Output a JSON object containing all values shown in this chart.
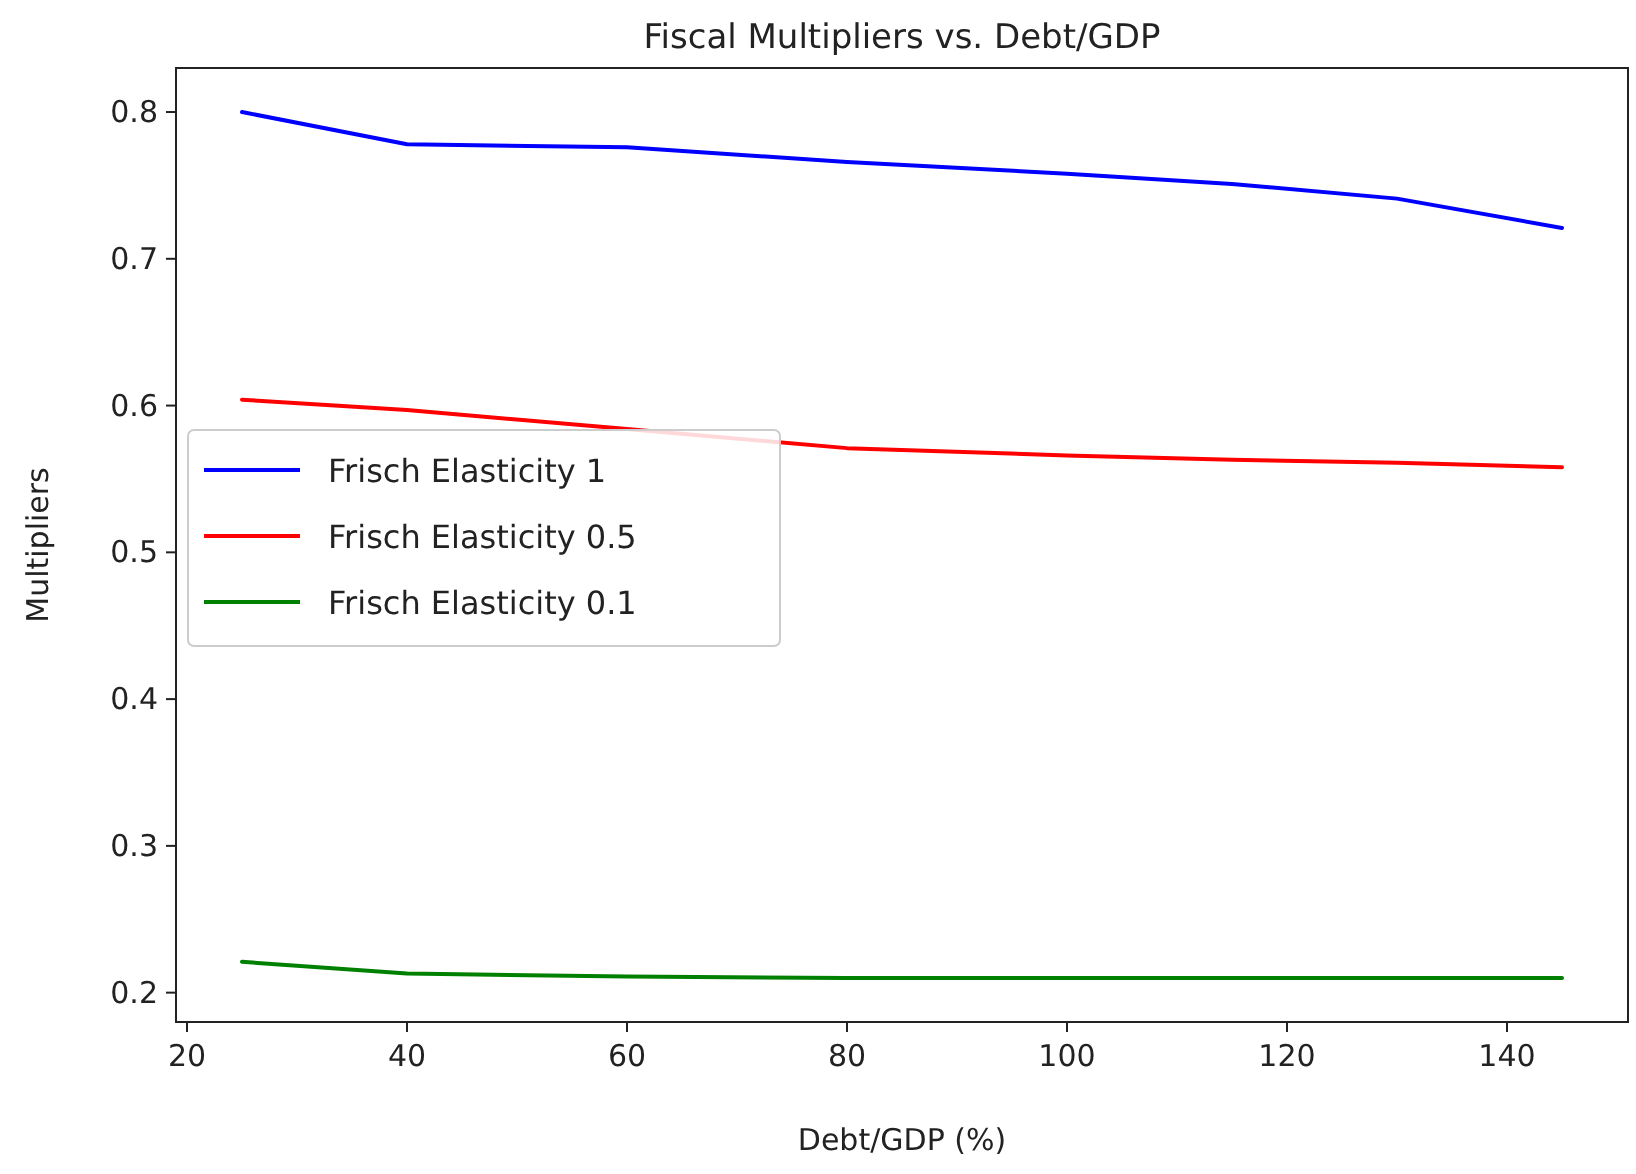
{
  "chart_data": {
    "type": "line",
    "title": "Fiscal Multipliers vs. Debt/GDP",
    "xlabel": "Debt/GDP (%)",
    "ylabel": "Multipliers",
    "x": [
      25,
      40,
      60,
      80,
      100,
      115,
      130,
      145
    ],
    "series": [
      {
        "name": "Frisch Elasticity 1",
        "color": "#0000ff",
        "values": [
          0.8,
          0.778,
          0.776,
          0.766,
          0.758,
          0.751,
          0.741,
          0.721
        ]
      },
      {
        "name": "Frisch Elasticity 0.5",
        "color": "#ff0000",
        "values": [
          0.604,
          0.597,
          0.584,
          0.571,
          0.566,
          0.563,
          0.561,
          0.558
        ]
      },
      {
        "name": "Frisch Elasticity 0.1",
        "color": "#008000",
        "values": [
          0.221,
          0.213,
          0.211,
          0.21,
          0.21,
          0.21,
          0.21,
          0.21
        ]
      }
    ],
    "xlim": [
      19,
      151
    ],
    "xticks": [
      20,
      40,
      60,
      80,
      100,
      120,
      140
    ],
    "ylim": [
      0.18,
      0.83
    ],
    "yticks": [
      0.2,
      0.3,
      0.4,
      0.5,
      0.6,
      0.7,
      0.8
    ],
    "grid": false,
    "legend": "left",
    "line_style": "solid",
    "marker": "none"
  }
}
